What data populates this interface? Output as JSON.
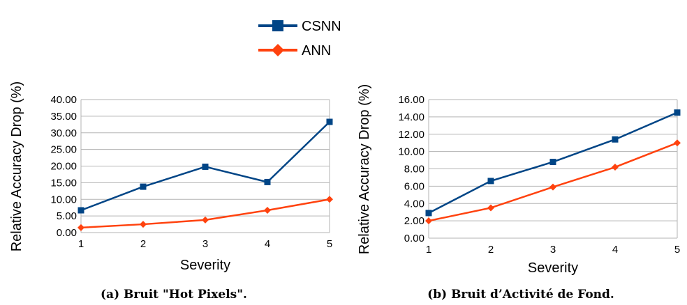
{
  "legend": [
    {
      "name": "CSNN",
      "color": "#004586",
      "marker": "square"
    },
    {
      "name": "ANN",
      "color": "#ff420e",
      "marker": "diamond"
    }
  ],
  "chart_data": [
    {
      "type": "line",
      "caption": "(a) Bruit \"Hot Pixels\".",
      "xlabel": "Severity",
      "ylabel": "Relative Accuracy Drop (%)",
      "x": [
        1,
        2,
        3,
        4,
        5
      ],
      "ylim": [
        0,
        40
      ],
      "yticks": [
        "0.00",
        "5.00",
        "10.00",
        "15.00",
        "20.00",
        "25.00",
        "30.00",
        "35.00",
        "40.00"
      ],
      "grid": true,
      "series": [
        {
          "name": "CSNN",
          "values": [
            6.7,
            13.8,
            19.8,
            15.2,
            33.3
          ]
        },
        {
          "name": "ANN",
          "values": [
            1.5,
            2.5,
            3.8,
            6.7,
            10.0
          ]
        }
      ]
    },
    {
      "type": "line",
      "caption": "(b) Bruit d’Activité de Fond.",
      "xlabel": "Severity",
      "ylabel": "Relative Accuracy Drop (%)",
      "x": [
        1,
        2,
        3,
        4,
        5
      ],
      "ylim": [
        0,
        16
      ],
      "yticks": [
        "0.00",
        "2.00",
        "4.00",
        "6.00",
        "8.00",
        "10.00",
        "12.00",
        "14.00",
        "16.00"
      ],
      "grid": true,
      "series": [
        {
          "name": "CSNN",
          "values": [
            2.9,
            6.6,
            8.8,
            11.4,
            14.5
          ]
        },
        {
          "name": "ANN",
          "values": [
            2.0,
            3.5,
            5.9,
            8.2,
            11.0
          ]
        }
      ]
    }
  ]
}
